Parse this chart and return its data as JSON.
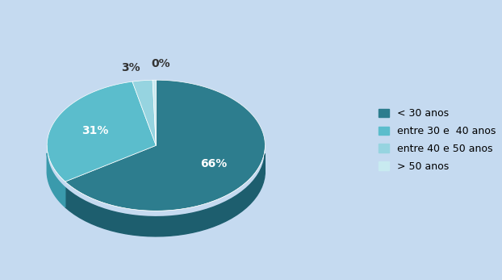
{
  "values": [
    66,
    31,
    3,
    0.5
  ],
  "display_labels": [
    "66%",
    "31%",
    "3%",
    "0%"
  ],
  "legend_labels": [
    "< 30 anos",
    "entre 30 e  40 anos",
    "entre 40 e 50 anos",
    "> 50 anos"
  ],
  "colors_top": [
    "#2d7d8e",
    "#5bbdcc",
    "#96d4e0",
    "#c8eaf0"
  ],
  "colors_side": [
    "#1d5e6e",
    "#3a9aac",
    "#70b8c8",
    "#a8d8e4"
  ],
  "background_color": "#c5daf0",
  "startangle": 90,
  "label_fontsize": 10,
  "legend_fontsize": 9,
  "text_color": "#333333"
}
